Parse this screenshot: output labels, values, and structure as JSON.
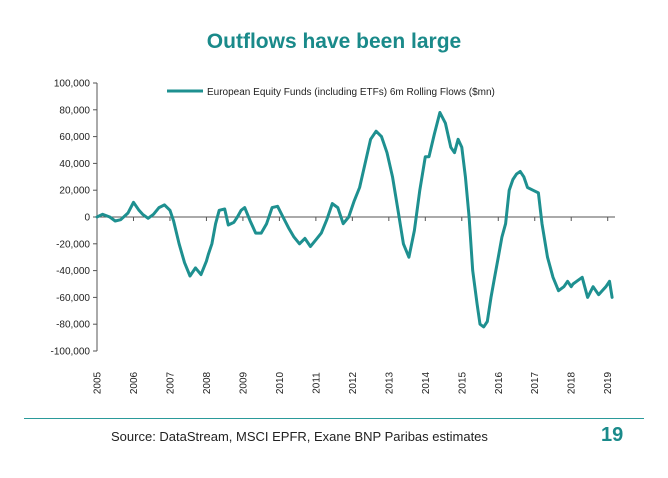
{
  "title": "Outflows have been large",
  "source": "Source: DataStream, MSCI EPFR, Exane BNP Paribas estimates",
  "page_number": "19",
  "colors": {
    "accent": "#1a8a8a",
    "series": "#1e9090"
  },
  "chart_data": {
    "type": "line",
    "title": "",
    "xlabel": "",
    "ylabel": "",
    "xlim": [
      2005,
      2019.2
    ],
    "ylim": [
      -100000,
      100000
    ],
    "x_ticks": [
      "2005",
      "2006",
      "2007",
      "2008",
      "2009",
      "2010",
      "2011",
      "2012",
      "2013",
      "2014",
      "2015",
      "2016",
      "2017",
      "2018",
      "2019"
    ],
    "y_ticks": [
      "100,000",
      "80,000",
      "60,000",
      "40,000",
      "20,000",
      "0",
      "-20,000",
      "-40,000",
      "-60,000",
      "-80,000",
      "-100,000"
    ],
    "legend_position": "top",
    "grid": false,
    "series": [
      {
        "name": "European Equity Funds (including ETFs) 6m Rolling Flows ($mn)",
        "x": [
          2005.0,
          2005.15,
          2005.35,
          2005.5,
          2005.65,
          2005.85,
          2006.0,
          2006.15,
          2006.25,
          2006.4,
          2006.55,
          2006.7,
          2006.85,
          2007.0,
          2007.1,
          2007.25,
          2007.4,
          2007.55,
          2007.7,
          2007.85,
          2008.0,
          2008.05,
          2008.15,
          2008.25,
          2008.35,
          2008.5,
          2008.6,
          2008.75,
          2008.85,
          2008.95,
          2009.05,
          2009.2,
          2009.35,
          2009.5,
          2009.65,
          2009.8,
          2009.95,
          2010.1,
          2010.25,
          2010.4,
          2010.55,
          2010.7,
          2010.85,
          2011.0,
          2011.15,
          2011.3,
          2011.45,
          2011.6,
          2011.75,
          2011.9,
          2012.05,
          2012.2,
          2012.35,
          2012.5,
          2012.65,
          2012.8,
          2012.95,
          2013.1,
          2013.25,
          2013.4,
          2013.55,
          2013.7,
          2013.85,
          2014.0,
          2014.1,
          2014.25,
          2014.4,
          2014.55,
          2014.7,
          2014.8,
          2014.9,
          2015.0,
          2015.1,
          2015.2,
          2015.3,
          2015.42,
          2015.5,
          2015.6,
          2015.7,
          2015.8,
          2015.9,
          2016.0,
          2016.1,
          2016.2,
          2016.3,
          2016.4,
          2016.5,
          2016.6,
          2016.7,
          2016.8,
          2016.95,
          2017.1,
          2017.2,
          2017.35,
          2017.5,
          2017.65,
          2017.8,
          2017.9,
          2018.0,
          2018.05,
          2018.15,
          2018.3,
          2018.45,
          2018.6,
          2018.75,
          2018.85,
          2018.95,
          2019.05,
          2019.12
        ],
        "y": [
          0,
          2000,
          0,
          -3000,
          -2000,
          3000,
          11000,
          5000,
          2000,
          -1000,
          2000,
          7000,
          9000,
          5000,
          -3000,
          -20000,
          -34000,
          -44000,
          -38000,
          -43000,
          -33000,
          -28000,
          -20000,
          -5000,
          5000,
          6000,
          -6000,
          -4000,
          0,
          5000,
          7000,
          -3000,
          -12000,
          -12000,
          -5000,
          7000,
          8000,
          0,
          -8000,
          -15000,
          -20000,
          -16000,
          -22000,
          -17000,
          -12000,
          -2000,
          10000,
          7000,
          -5000,
          0,
          12000,
          22000,
          40000,
          58000,
          64000,
          60000,
          48000,
          30000,
          5000,
          -20000,
          -30000,
          -10000,
          20000,
          45000,
          45000,
          62000,
          78000,
          70000,
          52000,
          48000,
          58000,
          52000,
          30000,
          0,
          -40000,
          -65000,
          -80000,
          -82000,
          -78000,
          -60000,
          -45000,
          -30000,
          -15000,
          -5000,
          20000,
          28000,
          32000,
          34000,
          30000,
          22000,
          20000,
          18000,
          -5000,
          -30000,
          -45000,
          -55000,
          -52000,
          -48000,
          -52000,
          -50000,
          -48000,
          -45000,
          -60000,
          -52000,
          -58000,
          -55000,
          -52000,
          -48000,
          -60000
        ]
      }
    ]
  }
}
